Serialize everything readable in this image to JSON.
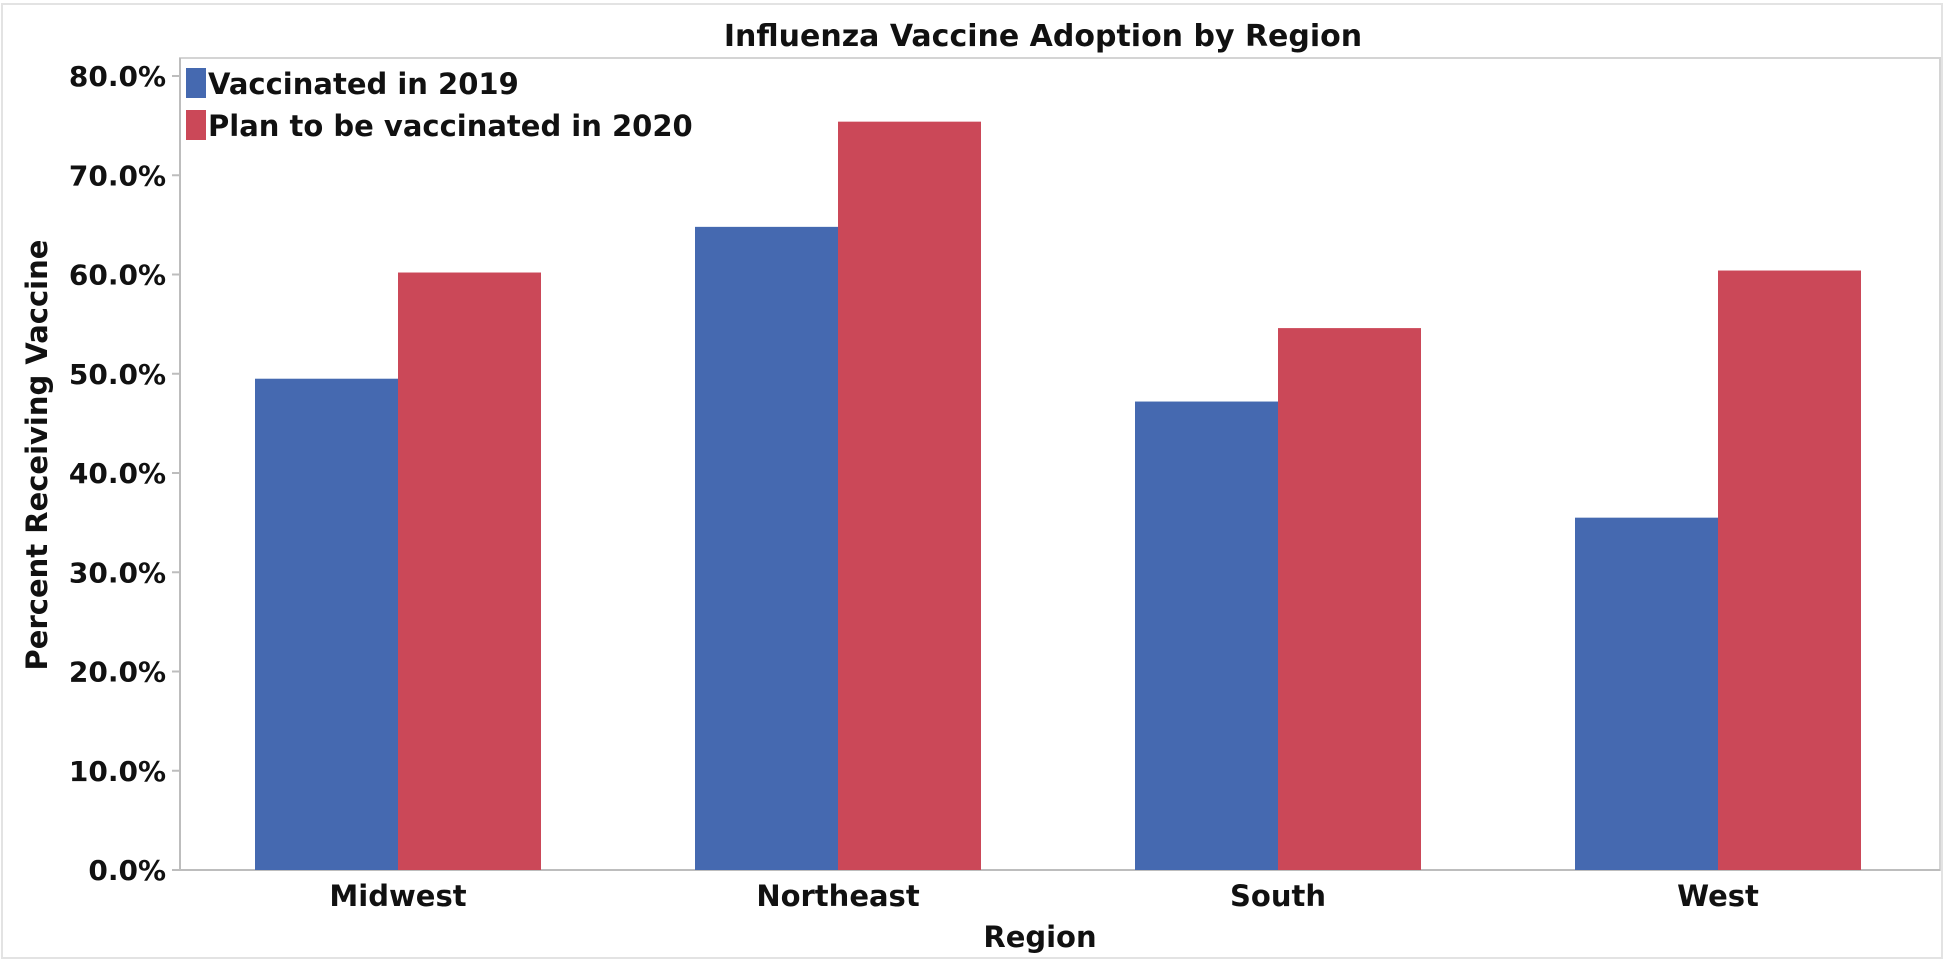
{
  "chart_data": {
    "type": "bar",
    "title": "Influenza Vaccine Adoption by Region",
    "xlabel": "Region",
    "ylabel": "Percent Receiving Vaccine",
    "categories": [
      "Midwest",
      "Northeast",
      "South",
      "West"
    ],
    "series": [
      {
        "name": "Vaccinated in 2019",
        "color": "#4569B0",
        "values": [
          49.5,
          64.8,
          47.2,
          35.5
        ]
      },
      {
        "name": "Plan to be vaccinated in 2020",
        "color": "#CB4858",
        "values": [
          60.2,
          75.4,
          54.6,
          60.4
        ]
      }
    ],
    "ylim": [
      0,
      80
    ],
    "yticks": [
      "0.0%",
      "10.0%",
      "20.0%",
      "30.0%",
      "40.0%",
      "50.0%",
      "60.0%",
      "70.0%",
      "80.0%"
    ],
    "ytick_values": [
      0,
      10,
      20,
      30,
      40,
      50,
      60,
      70,
      80
    ],
    "grid": false,
    "legend_position": "top-left"
  }
}
